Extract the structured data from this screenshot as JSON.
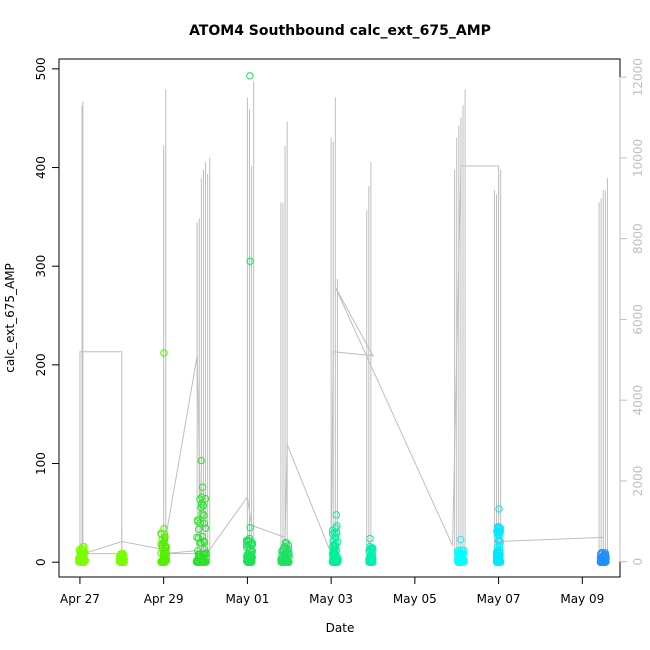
{
  "chart_data": {
    "type": "scatter",
    "title": "ATOM4 Southbound calc_ext_675_AMP",
    "xlabel": "Date",
    "ylabel": "calc_ext_675_AMP",
    "x_ticks": [
      "Apr 27",
      "Apr 29",
      "May 01",
      "May 03",
      "May 05",
      "May 07",
      "May 09"
    ],
    "x_tick_days": [
      0,
      2,
      4,
      6,
      8,
      10,
      12
    ],
    "xlim_days": [
      -0.5,
      12.9
    ],
    "ylim": [
      -15,
      510
    ],
    "y_ticks": [
      0,
      100,
      200,
      300,
      400,
      500
    ],
    "y2lim": [
      -380,
      12450
    ],
    "y2_ticks": [
      0,
      2000,
      4000,
      6000,
      8000,
      10000,
      12000
    ],
    "grid": false,
    "legend": "none",
    "colors": {
      "axis": "#000000",
      "secondary_axis": "#bebebe",
      "secondary_line": "#bebebe",
      "scatter_ramp": [
        "#7cfc00",
        "#20e020",
        "#00ff88",
        "#00ffff",
        "#1e90ff"
      ]
    },
    "series": [
      {
        "name": "",
        "axis": "primary",
        "kind": "points",
        "day_center": 0.05,
        "spread": 0.08,
        "color": "#7cfc00",
        "max": 16,
        "outliers": []
      },
      {
        "name": "",
        "axis": "primary",
        "kind": "points",
        "day_center": 1.0,
        "spread": 0.06,
        "color": "#7cfc00",
        "max": 9,
        "outliers": []
      },
      {
        "name": "",
        "axis": "primary",
        "kind": "points",
        "day_center": 2.0,
        "spread": 0.07,
        "color": "#55f000",
        "max": 30,
        "outliers": [
          212,
          34
        ]
      },
      {
        "name": "",
        "axis": "primary",
        "kind": "points",
        "day_center": 2.9,
        "spread": 0.12,
        "color": "#2ee02e",
        "max": 72,
        "outliers": [
          103,
          76,
          66
        ]
      },
      {
        "name": "",
        "axis": "primary",
        "kind": "points",
        "day_center": 4.05,
        "spread": 0.07,
        "color": "#1fe05a",
        "max": 25,
        "outliers": [
          493,
          305,
          35
        ]
      },
      {
        "name": "",
        "axis": "primary",
        "kind": "points",
        "day_center": 4.9,
        "spread": 0.1,
        "color": "#1fe060",
        "max": 22,
        "outliers": []
      },
      {
        "name": "",
        "axis": "primary",
        "kind": "points",
        "day_center": 6.1,
        "spread": 0.07,
        "color": "#00f09a",
        "max": 42,
        "outliers": [
          48
        ]
      },
      {
        "name": "",
        "axis": "primary",
        "kind": "points",
        "day_center": 6.95,
        "spread": 0.05,
        "color": "#00f0b0",
        "max": 16,
        "outliers": [
          24
        ]
      },
      {
        "name": "",
        "axis": "primary",
        "kind": "points",
        "day_center": 9.1,
        "spread": 0.08,
        "color": "#00ffff",
        "max": 14,
        "outliers": [
          23
        ]
      },
      {
        "name": "",
        "axis": "primary",
        "kind": "points",
        "day_center": 10.0,
        "spread": 0.05,
        "color": "#00e8ff",
        "max": 40,
        "outliers": [
          54
        ]
      },
      {
        "name": "",
        "axis": "primary",
        "kind": "points",
        "day_center": 12.5,
        "spread": 0.07,
        "color": "#1e90ff",
        "max": 10,
        "outliers": []
      }
    ],
    "secondary_line": {
      "axis": "secondary",
      "spikes": [
        {
          "day": 0.05,
          "peak": 11300
        },
        {
          "day": 0.07,
          "peak": 11400
        },
        {
          "day": 1.0,
          "peak": 800
        },
        {
          "day": 2.0,
          "peak": 10300
        },
        {
          "day": 2.05,
          "peak": 11700
        },
        {
          "day": 2.8,
          "peak": 8400
        },
        {
          "day": 2.85,
          "peak": 8500
        },
        {
          "day": 2.9,
          "peak": 9500
        },
        {
          "day": 2.95,
          "peak": 9700
        },
        {
          "day": 3.0,
          "peak": 9900
        },
        {
          "day": 3.05,
          "peak": 9600
        },
        {
          "day": 3.1,
          "peak": 10000
        },
        {
          "day": 4.0,
          "peak": 11500
        },
        {
          "day": 4.05,
          "peak": 11200
        },
        {
          "day": 4.1,
          "peak": 9800
        },
        {
          "day": 4.15,
          "peak": 11900
        },
        {
          "day": 4.8,
          "peak": 8900
        },
        {
          "day": 4.85,
          "peak": 8900
        },
        {
          "day": 4.9,
          "peak": 10300
        },
        {
          "day": 4.95,
          "peak": 10900
        },
        {
          "day": 6.0,
          "peak": 10500
        },
        {
          "day": 6.05,
          "peak": 10400
        },
        {
          "day": 6.1,
          "peak": 11500
        },
        {
          "day": 6.15,
          "peak": 7000
        },
        {
          "day": 6.85,
          "peak": 8700
        },
        {
          "day": 6.9,
          "peak": 9300
        },
        {
          "day": 6.95,
          "peak": 9900
        },
        {
          "day": 8.95,
          "peak": 9700
        },
        {
          "day": 9.0,
          "peak": 10500
        },
        {
          "day": 9.05,
          "peak": 10800
        },
        {
          "day": 9.1,
          "peak": 11000
        },
        {
          "day": 9.15,
          "peak": 11300
        },
        {
          "day": 9.2,
          "peak": 11700
        },
        {
          "day": 9.9,
          "peak": 9200
        },
        {
          "day": 9.95,
          "peak": 9100
        },
        {
          "day": 10.0,
          "peak": 9600
        },
        {
          "day": 10.05,
          "peak": 9700
        },
        {
          "day": 12.4,
          "peak": 8900
        },
        {
          "day": 12.45,
          "peak": 9000
        },
        {
          "day": 12.5,
          "peak": 9200
        },
        {
          "day": 12.55,
          "peak": 9200
        },
        {
          "day": 12.6,
          "peak": 9500
        }
      ],
      "connectors": [
        [
          0.0,
          200
        ],
        [
          0.0,
          5200
        ],
        [
          1.0,
          5200
        ],
        [
          1.0,
          200
        ],
        [
          0.1,
          200
        ],
        [
          1.0,
          500
        ],
        [
          2.0,
          300
        ],
        [
          2.8,
          5100
        ],
        [
          2.9,
          200
        ],
        [
          2.0,
          200
        ],
        [
          3.1,
          300
        ],
        [
          4.0,
          1600
        ],
        [
          4.1,
          900
        ],
        [
          4.9,
          600
        ],
        [
          4.95,
          2900
        ],
        [
          6.0,
          200
        ],
        [
          6.05,
          5200
        ],
        [
          7.0,
          5100
        ],
        [
          6.1,
          6800
        ],
        [
          8.9,
          400
        ],
        [
          9.1,
          9800
        ],
        [
          10.0,
          9800
        ],
        [
          10.0,
          500
        ],
        [
          12.5,
          600
        ]
      ]
    }
  }
}
